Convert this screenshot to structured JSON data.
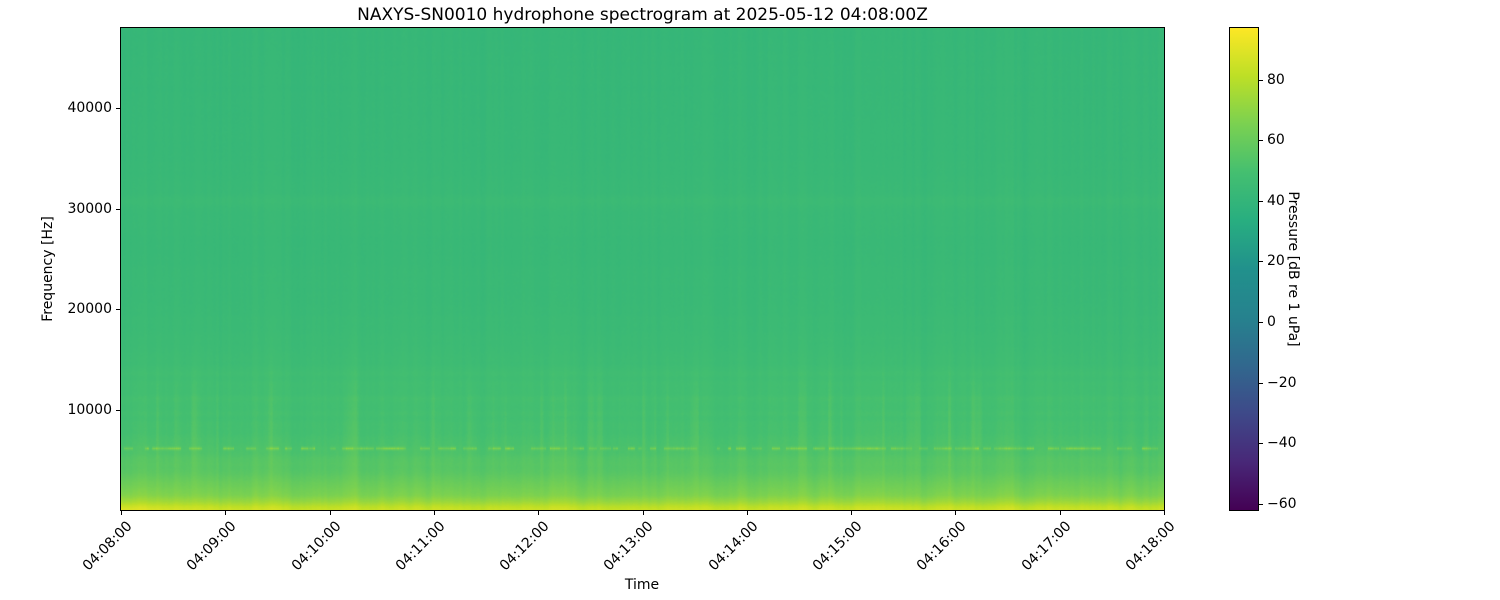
{
  "chart_data": {
    "type": "heatmap",
    "subtype": "spectrogram",
    "title": "NAXYS-SN0010 hydrophone spectrogram at 2025-05-12 04:08:00Z",
    "xlabel": "Time",
    "ylabel": "Frequency [Hz]",
    "x_tick_labels": [
      "04:08:00",
      "04:09:00",
      "04:10:00",
      "04:11:00",
      "04:12:00",
      "04:13:00",
      "04:14:00",
      "04:15:00",
      "04:16:00",
      "04:17:00",
      "04:18:00"
    ],
    "x_span_minutes": 10,
    "y_ticks_hz": [
      10000,
      20000,
      30000,
      40000
    ],
    "y_tick_labels": [
      "10000",
      "20000",
      "30000",
      "40000"
    ],
    "ylim_hz": [
      0,
      48000
    ],
    "grid": false,
    "colorbar": {
      "label": "Pressure [dB re 1 uPa]",
      "position": "right",
      "ticks": [
        80,
        60,
        40,
        20,
        0,
        -20,
        -40,
        -60
      ],
      "tick_labels": [
        "80",
        "60",
        "40",
        "20",
        "0",
        "−20",
        "−40",
        "−60"
      ],
      "vmin": -62,
      "vmax": 97,
      "colormap": "viridis",
      "colormap_stops": [
        [
          0.0,
          "#440154"
        ],
        [
          0.1,
          "#482878"
        ],
        [
          0.2,
          "#3e4989"
        ],
        [
          0.3,
          "#31688e"
        ],
        [
          0.4,
          "#26828e"
        ],
        [
          0.5,
          "#21918c"
        ],
        [
          0.6,
          "#28ae80"
        ],
        [
          0.7,
          "#44bf70"
        ],
        [
          0.8,
          "#7ad151"
        ],
        [
          0.9,
          "#bddf26"
        ],
        [
          1.0,
          "#fde725"
        ]
      ]
    },
    "spectrum_profile_db": [
      [
        0,
        85
      ],
      [
        400,
        81
      ],
      [
        900,
        73
      ],
      [
        1500,
        66
      ],
      [
        2500,
        61
      ],
      [
        4000,
        56
      ],
      [
        6000,
        52
      ],
      [
        8000,
        49.5
      ],
      [
        12000,
        48.5
      ],
      [
        16000,
        45.5
      ],
      [
        20000,
        44.2
      ],
      [
        26000,
        43.2
      ],
      [
        31000,
        43.6
      ],
      [
        36000,
        42.5
      ],
      [
        48000,
        41.8
      ]
    ],
    "features": {
      "surface_noise_band": {
        "freq_range_hz": [
          0,
          3000
        ],
        "peak_level_db": 85,
        "description": "bright yellow-green broadband noise at lowest frequencies fading upward"
      },
      "tonal_line": {
        "freq_hz": 6200,
        "level_db_range": [
          52,
          68
        ],
        "pattern": "intermittent bright dashes across full duration"
      },
      "faint_band": {
        "freq_hz": 30800,
        "level_boost_db": 1.3
      },
      "early_time_wedge": {
        "extra_db": 6.5,
        "freq_extent_hz": 4500,
        "description": "slightly brighter low-frequency wedge in first ~30 s"
      },
      "vertical_striping_db": 2.5,
      "background_level_db": 42
    },
    "render": {
      "seed": 1337,
      "pixel_noise_db": 1.1
    }
  }
}
